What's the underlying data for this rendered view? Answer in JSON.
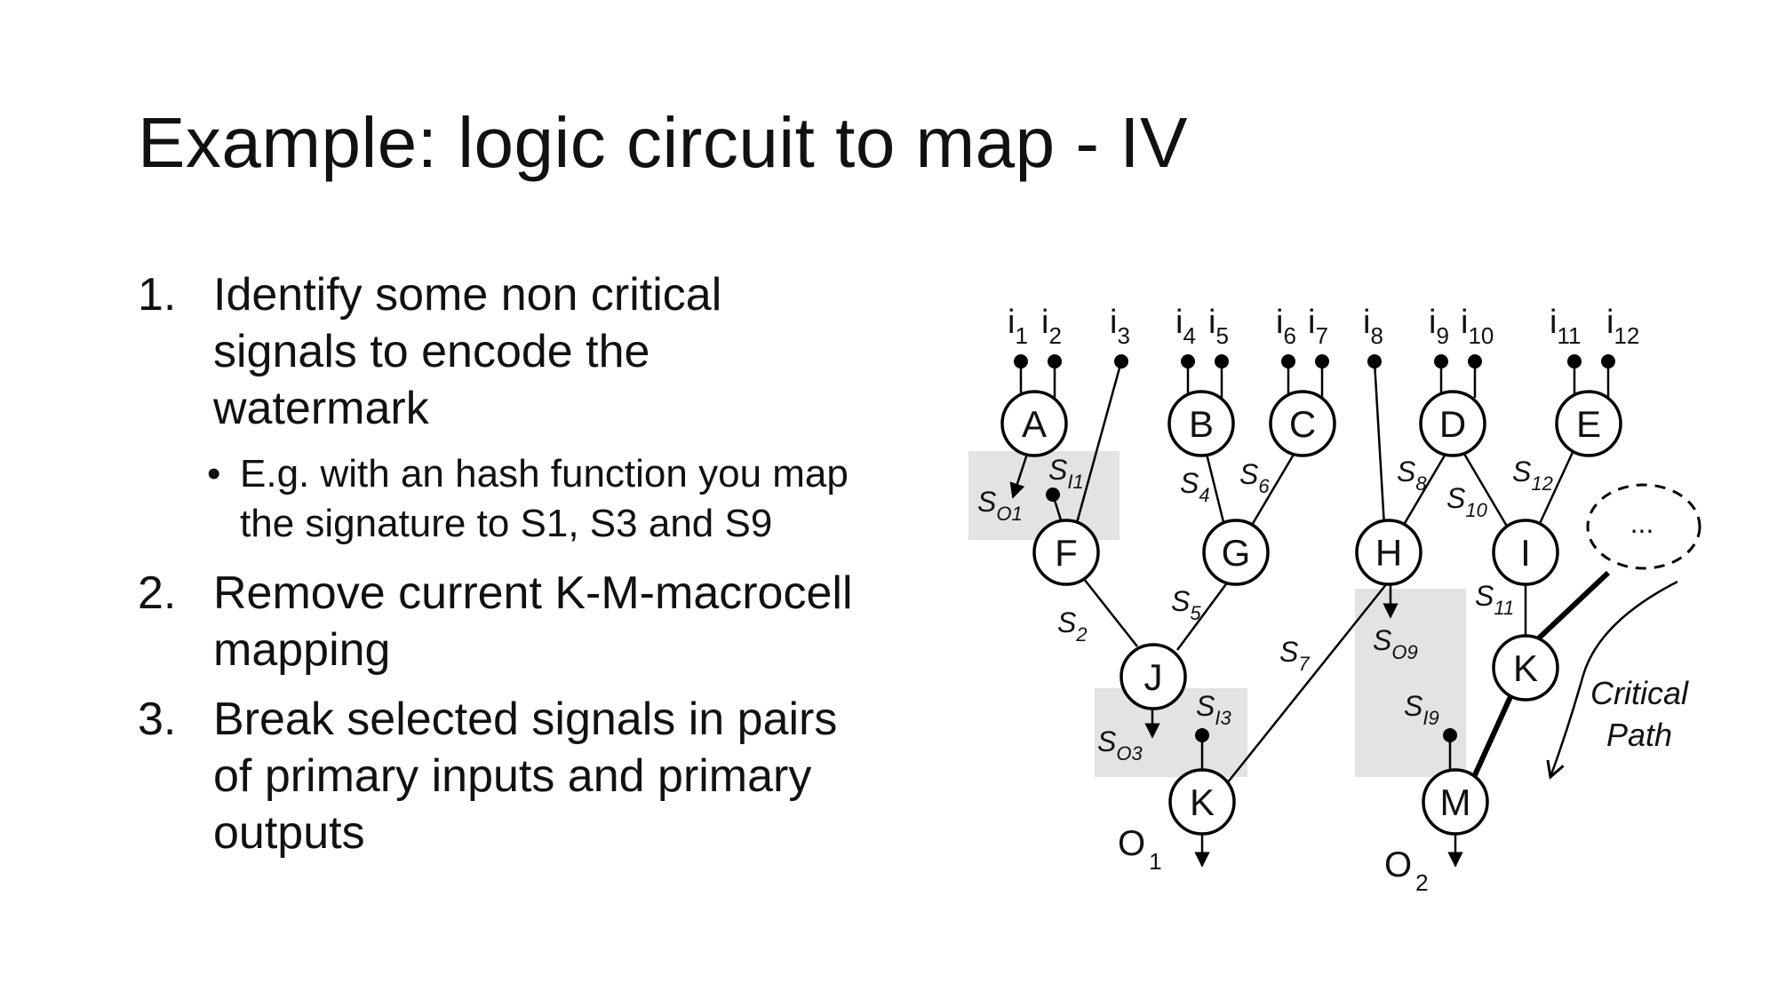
{
  "slide": {
    "title": "Example: logic circuit to map - IV",
    "items": [
      {
        "number": "1.",
        "lines": [
          "Identify some non critical",
          "signals to encode the",
          "watermark"
        ],
        "sub": {
          "bullet": "•",
          "lines": [
            "E.g. with an hash function you map",
            "the signature to S1, S3 and S9"
          ]
        }
      },
      {
        "number": "2.",
        "lines": [
          "Remove current K-M-macrocell",
          "mapping"
        ]
      },
      {
        "number": "3.",
        "lines": [
          "Break selected signals in pairs",
          "of primary inputs and primary",
          "outputs"
        ]
      }
    ]
  },
  "diagram": {
    "inputs": {
      "i1": {
        "base": "i",
        "sub": "1"
      },
      "i2": {
        "base": "i",
        "sub": "2"
      },
      "i3": {
        "base": "i",
        "sub": "3"
      },
      "i4": {
        "base": "i",
        "sub": "4"
      },
      "i5": {
        "base": "i",
        "sub": "5"
      },
      "i6": {
        "base": "i",
        "sub": "6"
      },
      "i7": {
        "base": "i",
        "sub": "7"
      },
      "i8": {
        "base": "i",
        "sub": "8"
      },
      "i9": {
        "base": "i",
        "sub": "9"
      },
      "i10": {
        "base": "i",
        "sub": "10"
      },
      "i11": {
        "base": "i",
        "sub": "11"
      },
      "i12": {
        "base": "i",
        "sub": "12"
      }
    },
    "nodes": {
      "A": "A",
      "B": "B",
      "C": "C",
      "D": "D",
      "E": "E",
      "F": "F",
      "G": "G",
      "H": "H",
      "I": "I",
      "J": "J",
      "K_left": "K",
      "K_right": "K",
      "M": "M",
      "ellipsis": "..."
    },
    "signals": {
      "s_o1": {
        "base": "S",
        "sub": "O1"
      },
      "s_i1": {
        "base": "S",
        "sub": "I1"
      },
      "s2": {
        "base": "S",
        "sub": "2"
      },
      "s4": {
        "base": "S",
        "sub": "4"
      },
      "s5": {
        "base": "S",
        "sub": "5"
      },
      "s6": {
        "base": "S",
        "sub": "6"
      },
      "s7": {
        "base": "S",
        "sub": "7"
      },
      "s8": {
        "base": "S",
        "sub": "8"
      },
      "s10": {
        "base": "S",
        "sub": "10"
      },
      "s11": {
        "base": "S",
        "sub": "11"
      },
      "s12": {
        "base": "S",
        "sub": "12"
      },
      "s_o3": {
        "base": "S",
        "sub": "O3"
      },
      "s_i3": {
        "base": "S",
        "sub": "I3"
      },
      "s_o9": {
        "base": "S",
        "sub": "O9"
      },
      "s_i9": {
        "base": "S",
        "sub": "I9"
      }
    },
    "outputs": {
      "o1": {
        "base": "O",
        "sub": "1"
      },
      "o2": {
        "base": "O",
        "sub": "2"
      }
    },
    "critical_path": {
      "line1": "Critical",
      "line2": "Path"
    }
  }
}
